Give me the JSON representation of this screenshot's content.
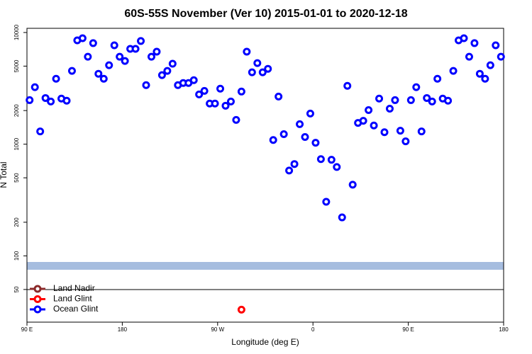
{
  "chart_data": {
    "type": "scatter",
    "title": "60S-55S November (Ver 10)   2015-01-01 to 2020-12-18",
    "x_label": "Longitude (deg E)",
    "y_label": "N Total",
    "y_log": true,
    "xlim": [
      90,
      540
    ],
    "ylim": [
      25.5,
      10900
    ],
    "xticks": [
      {
        "value": 90,
        "label": "90 E"
      },
      180,
      {
        "value": 270,
        "label": "90 W"
      },
      {
        "value": 360,
        "label": "0"
      },
      {
        "value": 450,
        "label": "90 E"
      },
      {
        "value": 540,
        "label": "180"
      }
    ],
    "yticks": [
      50,
      100,
      200,
      500,
      1000,
      2000,
      5000,
      10000
    ],
    "legend": "bottom-left",
    "series": [
      {
        "name": "Land Nadir",
        "color": "#8b2a2a",
        "x": [],
        "values": []
      },
      {
        "name": "Land Glint",
        "color": "#ff0000",
        "x": [
          292.5
        ],
        "values": [
          33
        ]
      },
      {
        "name": "Ocean Glint",
        "color": "#0000ff",
        "x": [
          92.5,
          97.5,
          102.5,
          107.5,
          112.5,
          117.5,
          122.5,
          127.5,
          132.5,
          137.5,
          142.5,
          147.5,
          152.5,
          157.5,
          162.5,
          167.5,
          172.5,
          177.5,
          182.5,
          187.5,
          192.5,
          197.5,
          202.5,
          207.5,
          212.5,
          217.5,
          222.5,
          227.5,
          232.5,
          237.5,
          242.5,
          247.5,
          252.5,
          257.5,
          262.5,
          267.5,
          272.5,
          277.5,
          282.5,
          287.5,
          292.5,
          297.5,
          302.5,
          307.5,
          312.5,
          317.5,
          322.5,
          327.5,
          332.5,
          337.5,
          342.5,
          347.5,
          352.5,
          357.5,
          362.5,
          367.5,
          372.5,
          377.5,
          382.5,
          387.5,
          392.5,
          397.5,
          402.5,
          407.5,
          412.5,
          417.5,
          422.5,
          427.5,
          432.5,
          437.5,
          442.5,
          447.5,
          452.5,
          457.5,
          462.5,
          467.5,
          472.5,
          477.5,
          482.5,
          487.5,
          492.5,
          497.5,
          502.5,
          507.5,
          512.5,
          517.5,
          522.5,
          527.5,
          532.5,
          537.5
        ],
        "values": [
          2480,
          3240,
          1300,
          2590,
          2410,
          3850,
          2560,
          2450,
          4530,
          8510,
          8890,
          6070,
          8030,
          4270,
          3850,
          5090,
          7680,
          6070,
          5560,
          7140,
          7140,
          8390,
          3380,
          6070,
          6730,
          4150,
          4530,
          5250,
          3380,
          3530,
          3530,
          3740,
          2790,
          3000,
          2310,
          2310,
          3140,
          2210,
          2410,
          1650,
          2960,
          6730,
          4400,
          5320,
          4400,
          4730,
          1090,
          2670,
          1230,
          581,
          664,
          1510,
          1160,
          1880,
          1030,
          735,
          305,
          725,
          625,
          221,
          3330,
          434,
          1550,
          1620,
          2020,
          1470,
          2560,
          1280,
          2080,
          2480,
          1320,
          1060,
          2480,
          3240,
          1300,
          2590,
          2410,
          3850,
          2560,
          2450,
          4530,
          8510,
          8890,
          6070,
          8030,
          4270,
          3850,
          5090,
          7680,
          6070
        ]
      }
    ]
  }
}
